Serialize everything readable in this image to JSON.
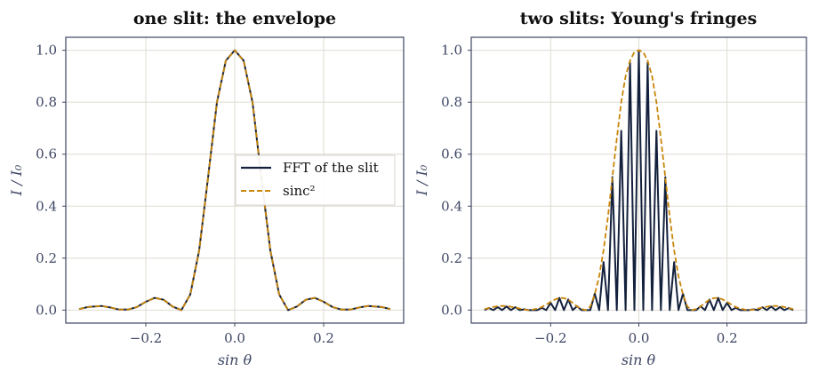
{
  "colors": {
    "fft": "#14213d",
    "sinc": "#c8860a",
    "axis": "#3d4663",
    "grid": "#dedbd2"
  },
  "chart_data": [
    {
      "type": "line",
      "title": "one slit: the envelope",
      "xlabel": "sin θ",
      "ylabel": "I / I₀",
      "xlim": [
        -0.38,
        0.38
      ],
      "ylim": [
        -0.05,
        1.05
      ],
      "xticks": [
        -0.2,
        0.0,
        0.2
      ],
      "xtick_labels": [
        "−0.2",
        "0.0",
        "0.2"
      ],
      "yticks": [
        0.0,
        0.2,
        0.4,
        0.6,
        0.8,
        1.0
      ],
      "ytick_labels": [
        "0.0",
        "0.2",
        "0.4",
        "0.6",
        "0.8",
        "1.0"
      ],
      "grid": true,
      "legend": "center-right",
      "legend_entries": [
        "FFT of the slit",
        "sinc²"
      ],
      "x": [
        -0.35,
        -0.33,
        -0.3,
        -0.28,
        -0.26,
        -0.24,
        -0.22,
        -0.2,
        -0.18,
        -0.16,
        -0.14,
        -0.12,
        -0.1,
        -0.08,
        -0.06,
        -0.04,
        -0.02,
        0.0,
        0.02,
        0.04,
        0.06,
        0.08,
        0.1,
        0.12,
        0.14,
        0.16,
        0.18,
        0.2,
        0.22,
        0.24,
        0.26,
        0.28,
        0.3,
        0.33,
        0.35
      ],
      "series": [
        {
          "name": "FFT of the slit",
          "style": "solid",
          "values": [
            0.004,
            0.012,
            0.016,
            0.01,
            0.002,
            0.002,
            0.012,
            0.032,
            0.047,
            0.04,
            0.014,
            0.0,
            0.06,
            0.23,
            0.51,
            0.8,
            0.96,
            1.0,
            0.96,
            0.8,
            0.51,
            0.23,
            0.06,
            0.0,
            0.014,
            0.04,
            0.047,
            0.032,
            0.012,
            0.002,
            0.002,
            0.01,
            0.016,
            0.012,
            0.004
          ]
        },
        {
          "name": "sinc²",
          "style": "dashed",
          "values": [
            0.004,
            0.012,
            0.016,
            0.01,
            0.002,
            0.002,
            0.012,
            0.032,
            0.047,
            0.04,
            0.014,
            0.0,
            0.06,
            0.23,
            0.51,
            0.8,
            0.96,
            1.0,
            0.96,
            0.8,
            0.51,
            0.23,
            0.06,
            0.0,
            0.014,
            0.04,
            0.047,
            0.032,
            0.012,
            0.002,
            0.002,
            0.01,
            0.016,
            0.012,
            0.004
          ]
        }
      ]
    },
    {
      "type": "line",
      "title": "two slits: Young's fringes",
      "xlabel": "sin θ",
      "ylabel": "I / I₀",
      "xlim": [
        -0.38,
        0.38
      ],
      "ylim": [
        -0.05,
        1.05
      ],
      "xticks": [
        -0.2,
        0.0,
        0.2
      ],
      "xtick_labels": [
        "−0.2",
        "0.0",
        "0.2"
      ],
      "yticks": [
        0.0,
        0.2,
        0.4,
        0.6,
        0.8,
        1.0
      ],
      "ytick_labels": [
        "0.0",
        "0.2",
        "0.4",
        "0.6",
        "0.8",
        "1.0"
      ],
      "grid": true,
      "x": [
        -0.35,
        -0.34,
        -0.33,
        -0.32,
        -0.31,
        -0.3,
        -0.29,
        -0.28,
        -0.27,
        -0.26,
        -0.25,
        -0.24,
        -0.23,
        -0.22,
        -0.21,
        -0.2,
        -0.19,
        -0.18,
        -0.17,
        -0.16,
        -0.15,
        -0.14,
        -0.13,
        -0.12,
        -0.11,
        -0.1,
        -0.09,
        -0.08,
        -0.07,
        -0.06,
        -0.05,
        -0.04,
        -0.03,
        -0.02,
        -0.01,
        0.0,
        0.01,
        0.02,
        0.03,
        0.04,
        0.05,
        0.06,
        0.07,
        0.08,
        0.09,
        0.1,
        0.11,
        0.12,
        0.13,
        0.14,
        0.15,
        0.16,
        0.17,
        0.18,
        0.19,
        0.2,
        0.21,
        0.22,
        0.23,
        0.24,
        0.25,
        0.26,
        0.27,
        0.28,
        0.29,
        0.3,
        0.31,
        0.32,
        0.33,
        0.34,
        0.35
      ],
      "series": [
        {
          "name": "",
          "style": "solid",
          "values": [
            0.0,
            0.008,
            0.0,
            0.012,
            0.0,
            0.014,
            0.0,
            0.011,
            0.0,
            0.003,
            0.0,
            0.0,
            0.0,
            0.009,
            0.0,
            0.028,
            0.0,
            0.047,
            0.0,
            0.041,
            0.0,
            0.015,
            0.0,
            0.0,
            0.0,
            0.063,
            0.0,
            0.185,
            0.0,
            0.512,
            0.0,
            0.69,
            0.0,
            0.952,
            0.0,
            1.0,
            0.0,
            0.952,
            0.0,
            0.69,
            0.0,
            0.512,
            0.0,
            0.185,
            0.0,
            0.063,
            0.0,
            0.0,
            0.0,
            0.015,
            0.0,
            0.041,
            0.0,
            0.047,
            0.0,
            0.028,
            0.0,
            0.009,
            0.0,
            0.0,
            0.0,
            0.003,
            0.0,
            0.011,
            0.0,
            0.014,
            0.0,
            0.012,
            0.0,
            0.008,
            0.0
          ]
        },
        {
          "name": "",
          "style": "dashed",
          "values": [
            0.004,
            0.008,
            0.012,
            0.015,
            0.016,
            0.016,
            0.013,
            0.01,
            0.006,
            0.002,
            0.0,
            0.002,
            0.006,
            0.012,
            0.021,
            0.032,
            0.041,
            0.047,
            0.046,
            0.04,
            0.028,
            0.014,
            0.004,
            0.0,
            0.014,
            0.06,
            0.13,
            0.23,
            0.36,
            0.51,
            0.66,
            0.8,
            0.9,
            0.96,
            0.993,
            1.0,
            0.993,
            0.96,
            0.9,
            0.8,
            0.66,
            0.51,
            0.36,
            0.23,
            0.13,
            0.06,
            0.014,
            0.0,
            0.004,
            0.014,
            0.028,
            0.04,
            0.046,
            0.047,
            0.041,
            0.032,
            0.021,
            0.012,
            0.006,
            0.002,
            0.0,
            0.002,
            0.006,
            0.01,
            0.013,
            0.016,
            0.016,
            0.015,
            0.012,
            0.008,
            0.004
          ]
        }
      ]
    }
  ]
}
